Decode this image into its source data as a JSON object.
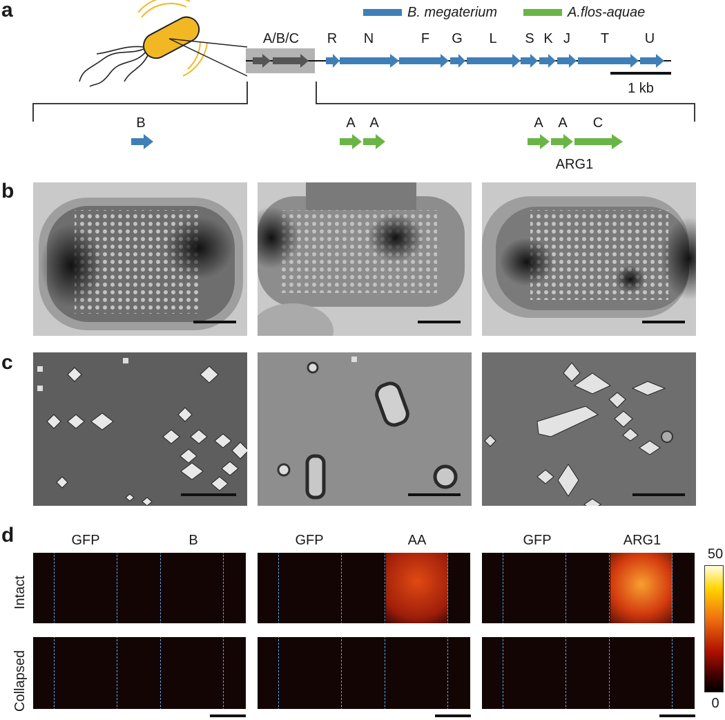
{
  "panels": {
    "a": "a",
    "b": "b",
    "c": "c",
    "d": "d"
  },
  "legend": {
    "series1": "B. megaterium",
    "series2": "A.flos-aquae",
    "color1": "#3f7fb7",
    "color2": "#6ab545"
  },
  "cluster": {
    "box_label": "A/B/C",
    "genes": [
      "R",
      "N",
      "F",
      "G",
      "L",
      "S",
      "K",
      "J",
      "T",
      "U"
    ],
    "scale_label": "1 kb"
  },
  "constructs": {
    "c1_genes": [
      "B"
    ],
    "c2_genes": [
      "A",
      "A"
    ],
    "c3_genes": [
      "A",
      "A",
      "C"
    ],
    "c3_name": "ARG1"
  },
  "panel_d": {
    "col_headers": [
      "GFP",
      "B",
      "GFP",
      "AA",
      "GFP",
      "ARG1"
    ],
    "row_labels": [
      "Intact",
      "Collapsed"
    ],
    "colorbar_max": "50",
    "colorbar_min": "0"
  },
  "colors": {
    "bacterium": "#f2b823",
    "gray_box": "#b3b3b3",
    "dashed": "#5aa9e6"
  }
}
